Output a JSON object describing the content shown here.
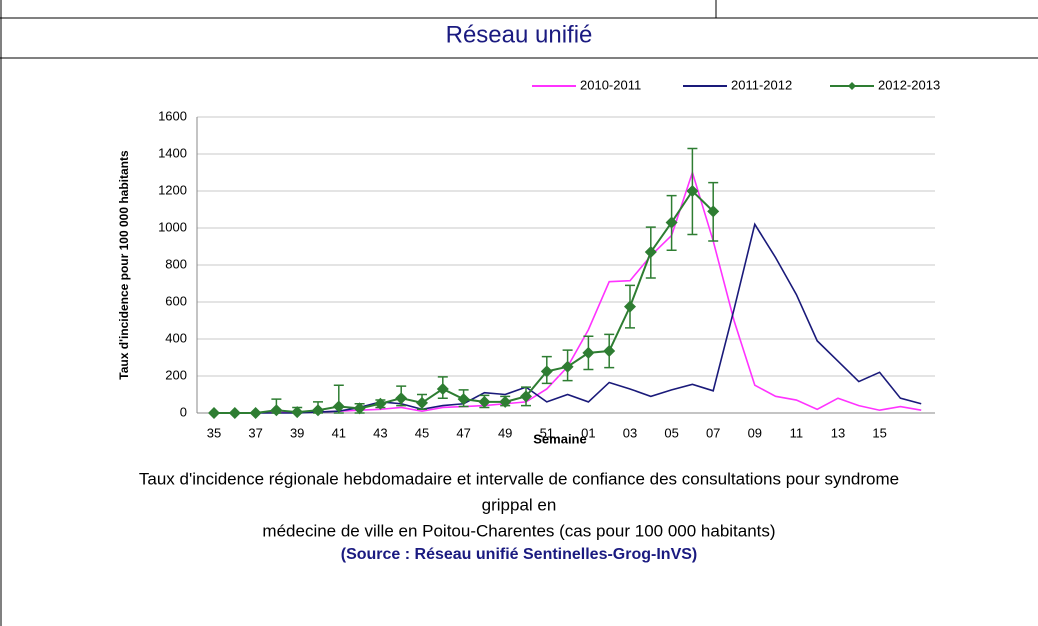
{
  "header": {
    "title": "Réseau unifié"
  },
  "chart_data": {
    "type": "line",
    "ylabel": "Taux d'incidence pour 100 000 habitants",
    "xlabel": "Semaine",
    "categories": [
      "35",
      null,
      "37",
      null,
      "39",
      null,
      "41",
      null,
      "43",
      null,
      "45",
      null,
      "47",
      null,
      "49",
      null,
      "51",
      null,
      "01",
      null,
      "03",
      null,
      "05",
      null,
      "07",
      null,
      "09",
      null,
      "11",
      null,
      "13",
      null,
      "15",
      null,
      null
    ],
    "ylim": [
      0,
      1600
    ],
    "yticks": [
      0,
      200,
      400,
      600,
      800,
      1000,
      1200,
      1400,
      1600
    ],
    "grid": true,
    "legend": "top-right",
    "series": [
      {
        "name": "2010-2011",
        "color": "#ff33ff",
        "values": [
          0,
          0,
          0,
          5,
          5,
          5,
          10,
          15,
          20,
          30,
          10,
          30,
          35,
          40,
          50,
          60,
          130,
          250,
          450,
          710,
          715,
          850,
          960,
          1300,
          930,
          500,
          150,
          90,
          70,
          20,
          80,
          40,
          15,
          35,
          15
        ]
      },
      {
        "name": "2011-2012",
        "color": "#1a1a7a",
        "values": [
          0,
          0,
          0,
          0,
          0,
          5,
          10,
          30,
          60,
          50,
          20,
          40,
          50,
          110,
          100,
          140,
          60,
          100,
          60,
          165,
          130,
          90,
          125,
          155,
          120,
          560,
          1020,
          840,
          640,
          390,
          280,
          170,
          220,
          80,
          50
        ]
      },
      {
        "name": "2012-2013",
        "color": "#2e7d32",
        "marker": "diamond",
        "values": [
          0,
          0,
          0,
          15,
          5,
          15,
          35,
          25,
          50,
          80,
          55,
          130,
          75,
          60,
          60,
          90,
          225,
          250,
          325,
          335,
          575,
          870,
          1030,
          1200,
          1090,
          null,
          null,
          null,
          null,
          null,
          null,
          null,
          null,
          null,
          null
        ],
        "error_low": [
          null,
          null,
          null,
          0,
          0,
          0,
          0,
          0,
          30,
          40,
          20,
          80,
          35,
          30,
          40,
          40,
          160,
          175,
          235,
          245,
          460,
          730,
          880,
          965,
          930,
          null,
          null,
          null,
          null,
          null,
          null,
          null,
          null,
          null,
          null
        ],
        "error_high": [
          null,
          null,
          null,
          75,
          30,
          60,
          150,
          50,
          70,
          145,
          100,
          195,
          125,
          95,
          90,
          140,
          305,
          340,
          415,
          425,
          690,
          1005,
          1175,
          1430,
          1245,
          null,
          null,
          null,
          null,
          null,
          null,
          null,
          null,
          null,
          null
        ]
      }
    ]
  },
  "caption": {
    "lines": [
      "Taux d'incidence régionale hebdomadaire et intervalle de confiance des consultations pour syndrome",
      "grippal en",
      "médecine de ville en Poitou-Charentes (cas pour 100 000 habitants)"
    ],
    "source": "(Source : Réseau unifié Sentinelles-Grog-InVS)"
  }
}
